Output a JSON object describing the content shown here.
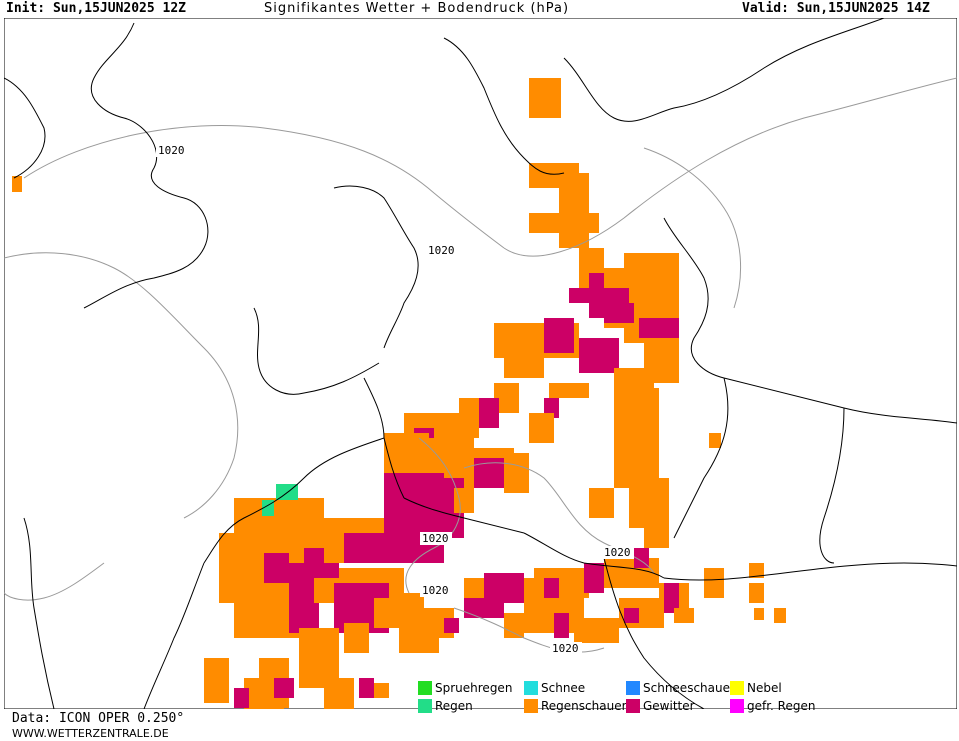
{
  "header": {
    "init": "Init: Sun,15JUN2025 12Z",
    "title": "Signifikantes Wetter + Bodendruck (hPa)",
    "valid": "Valid: Sun,15JUN2025 14Z"
  },
  "isobars": {
    "label": "1020"
  },
  "legend": {
    "items": [
      {
        "label": "Spruehregen",
        "color": "#22dd22"
      },
      {
        "label": "Schnee",
        "color": "#22dddd"
      },
      {
        "label": "Schneeschauer",
        "color": "#2288ff"
      },
      {
        "label": "Nebel",
        "color": "#ffff00"
      },
      {
        "label": "Regen",
        "color": "#22dd88"
      },
      {
        "label": "Regenschauer",
        "color": "#ff8c00"
      },
      {
        "label": "Gewitter",
        "color": "#cc0066"
      },
      {
        "label": "gefr. Regen",
        "color": "#ff00ff"
      }
    ]
  },
  "footer": {
    "data_source": "Data: ICON OPER 0.250°",
    "site": "WWW.WETTERZENTRALE.DE"
  }
}
